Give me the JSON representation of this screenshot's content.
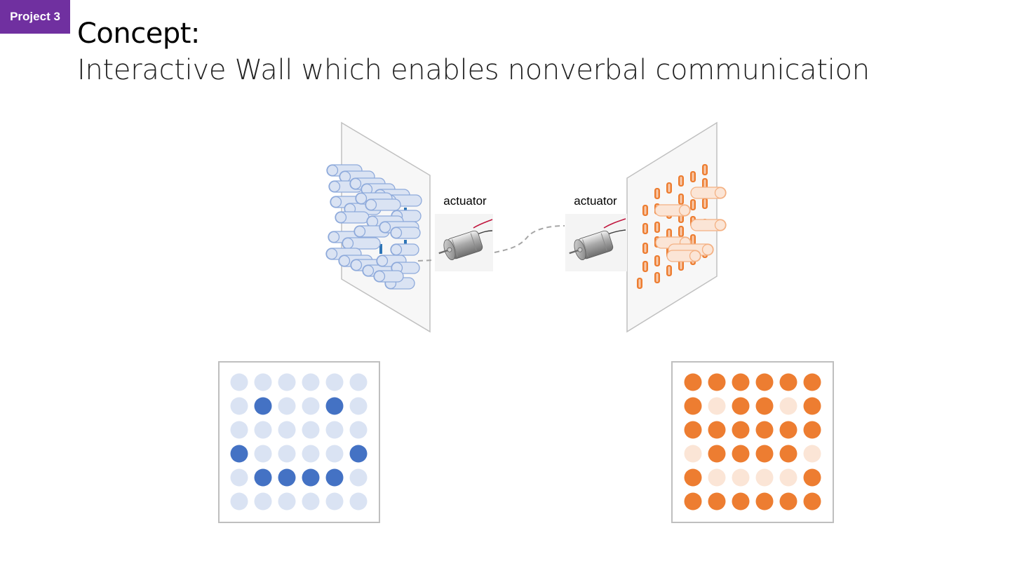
{
  "badge": {
    "label": "Project 3",
    "color": "#7030a0"
  },
  "title": "Concept:",
  "subtitle": "Interactive Wall which enables nonverbal communication",
  "actuators": [
    {
      "label": "actuator",
      "icon": "dc-motor-icon"
    },
    {
      "label": "actuator",
      "icon": "dc-motor-icon"
    }
  ],
  "colors": {
    "blue_active": "#4472c4",
    "blue_inactive": "#dae3f3",
    "orange_active": "#ed7d31",
    "orange_inactive": "#fbe5d6",
    "panel_border": "#bfbfbf"
  },
  "grids": {
    "left": [
      [
        0,
        0,
        0,
        0,
        0,
        0
      ],
      [
        0,
        1,
        0,
        0,
        1,
        0
      ],
      [
        0,
        0,
        0,
        0,
        0,
        0
      ],
      [
        1,
        0,
        0,
        0,
        0,
        1
      ],
      [
        0,
        1,
        1,
        1,
        1,
        0
      ],
      [
        0,
        0,
        0,
        0,
        0,
        0
      ]
    ],
    "right": [
      [
        1,
        1,
        1,
        1,
        1,
        1
      ],
      [
        1,
        0,
        1,
        1,
        0,
        1
      ],
      [
        1,
        1,
        1,
        1,
        1,
        1
      ],
      [
        0,
        1,
        1,
        1,
        1,
        0
      ],
      [
        1,
        0,
        0,
        0,
        0,
        1
      ],
      [
        1,
        1,
        1,
        1,
        1,
        1
      ]
    ]
  }
}
